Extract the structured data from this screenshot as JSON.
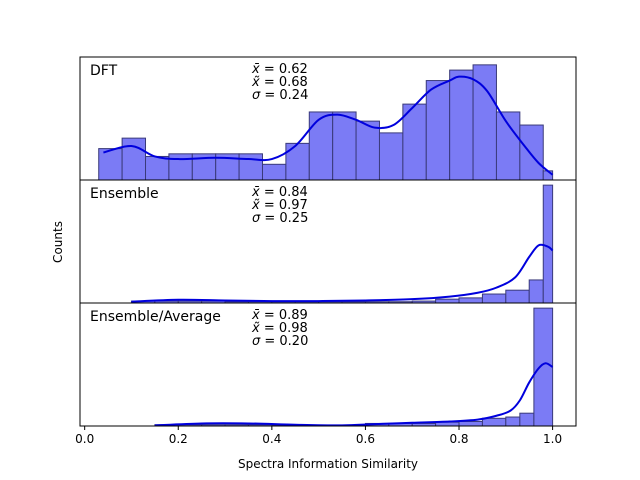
{
  "chart_data": {
    "type": "histogram",
    "xlabel": "Spectra Information Similarity",
    "ylabel": "Counts",
    "xlim": [
      -0.01,
      1.05
    ],
    "xticks": [
      0.0,
      0.2,
      0.4,
      0.6,
      0.8,
      1.0
    ],
    "xtick_labels": [
      "0.0",
      "0.2",
      "0.4",
      "0.6",
      "0.8",
      "1.0"
    ],
    "bar_color": "#7b7bf5",
    "bar_edge_color": "#3a3a7a",
    "kde_color": "#0000dd",
    "panels": [
      {
        "name": "DFT",
        "stats": {
          "mean": "0.62",
          "median": "0.68",
          "sigma": "0.24"
        },
        "ymax": 9.4,
        "bins": [
          [
            0.03,
            0.08,
            2.4
          ],
          [
            0.08,
            0.13,
            3.2
          ],
          [
            0.13,
            0.18,
            1.8
          ],
          [
            0.18,
            0.23,
            2.0
          ],
          [
            0.23,
            0.28,
            2.0
          ],
          [
            0.28,
            0.33,
            2.0
          ],
          [
            0.33,
            0.38,
            2.0
          ],
          [
            0.38,
            0.43,
            1.2
          ],
          [
            0.43,
            0.48,
            2.8
          ],
          [
            0.48,
            0.53,
            5.2
          ],
          [
            0.53,
            0.58,
            5.2
          ],
          [
            0.58,
            0.63,
            4.5
          ],
          [
            0.63,
            0.68,
            3.6
          ],
          [
            0.68,
            0.73,
            5.8
          ],
          [
            0.73,
            0.78,
            7.6
          ],
          [
            0.78,
            0.83,
            8.4
          ],
          [
            0.83,
            0.88,
            8.8
          ],
          [
            0.88,
            0.93,
            5.2
          ],
          [
            0.93,
            0.98,
            4.2
          ],
          [
            0.98,
            1.0,
            0.7
          ]
        ],
        "kde": [
          [
            0.04,
            2.1
          ],
          [
            0.1,
            2.6
          ],
          [
            0.15,
            1.8
          ],
          [
            0.2,
            1.6
          ],
          [
            0.28,
            1.7
          ],
          [
            0.35,
            1.6
          ],
          [
            0.4,
            1.6
          ],
          [
            0.45,
            2.6
          ],
          [
            0.5,
            4.6
          ],
          [
            0.54,
            5.0
          ],
          [
            0.58,
            4.6
          ],
          [
            0.62,
            4.0
          ],
          [
            0.66,
            4.2
          ],
          [
            0.7,
            5.5
          ],
          [
            0.74,
            6.9
          ],
          [
            0.78,
            7.6
          ],
          [
            0.8,
            7.9
          ],
          [
            0.83,
            7.7
          ],
          [
            0.86,
            6.8
          ],
          [
            0.9,
            4.5
          ],
          [
            0.94,
            2.6
          ],
          [
            0.97,
            1.3
          ],
          [
            1.0,
            0.4
          ]
        ]
      },
      {
        "name": "Ensemble",
        "stats": {
          "mean": "0.84",
          "median": "0.97",
          "sigma": "0.25"
        },
        "ymax": 9.6,
        "bins": [
          [
            0.1,
            0.15,
            0.15
          ],
          [
            0.15,
            0.2,
            0.15
          ],
          [
            0.2,
            0.25,
            0.15
          ],
          [
            0.25,
            0.3,
            0.15
          ],
          [
            0.3,
            0.35,
            0.1
          ],
          [
            0.35,
            0.4,
            0.1
          ],
          [
            0.4,
            0.45,
            0.1
          ],
          [
            0.45,
            0.5,
            0.1
          ],
          [
            0.5,
            0.55,
            0.1
          ],
          [
            0.55,
            0.6,
            0.1
          ],
          [
            0.6,
            0.65,
            0.1
          ],
          [
            0.65,
            0.7,
            0.1
          ],
          [
            0.7,
            0.75,
            0.15
          ],
          [
            0.75,
            0.8,
            0.3
          ],
          [
            0.8,
            0.85,
            0.4
          ],
          [
            0.85,
            0.9,
            0.7
          ],
          [
            0.9,
            0.95,
            1.0
          ],
          [
            0.95,
            0.98,
            1.8
          ],
          [
            0.98,
            1.0,
            9.2
          ]
        ],
        "kde": [
          [
            0.1,
            0.1
          ],
          [
            0.2,
            0.25
          ],
          [
            0.3,
            0.2
          ],
          [
            0.4,
            0.15
          ],
          [
            0.5,
            0.15
          ],
          [
            0.6,
            0.2
          ],
          [
            0.7,
            0.3
          ],
          [
            0.78,
            0.5
          ],
          [
            0.84,
            0.8
          ],
          [
            0.88,
            1.2
          ],
          [
            0.92,
            2.0
          ],
          [
            0.95,
            3.6
          ],
          [
            0.97,
            4.5
          ],
          [
            0.99,
            4.4
          ],
          [
            1.0,
            4.1
          ]
        ]
      },
      {
        "name": "Ensemble/Average",
        "stats": {
          "mean": "0.89",
          "median": "0.98",
          "sigma": "0.20"
        },
        "ymax": 9.6,
        "bins": [
          [
            0.15,
            0.2,
            0.1
          ],
          [
            0.2,
            0.25,
            0.1
          ],
          [
            0.25,
            0.3,
            0.1
          ],
          [
            0.3,
            0.35,
            0.1
          ],
          [
            0.35,
            0.4,
            0.1
          ],
          [
            0.4,
            0.45,
            0.05
          ],
          [
            0.45,
            0.5,
            0.05
          ],
          [
            0.5,
            0.55,
            0.05
          ],
          [
            0.55,
            0.6,
            0.05
          ],
          [
            0.6,
            0.65,
            0.2
          ],
          [
            0.65,
            0.7,
            0.2
          ],
          [
            0.7,
            0.75,
            0.2
          ],
          [
            0.75,
            0.8,
            0.3
          ],
          [
            0.8,
            0.85,
            0.35
          ],
          [
            0.85,
            0.9,
            0.6
          ],
          [
            0.9,
            0.93,
            0.7
          ],
          [
            0.93,
            0.96,
            1.0
          ],
          [
            0.96,
            1.0,
            9.2
          ]
        ],
        "kde": [
          [
            0.15,
            0.05
          ],
          [
            0.25,
            0.2
          ],
          [
            0.35,
            0.2
          ],
          [
            0.45,
            0.1
          ],
          [
            0.55,
            0.05
          ],
          [
            0.62,
            0.15
          ],
          [
            0.7,
            0.25
          ],
          [
            0.78,
            0.35
          ],
          [
            0.84,
            0.5
          ],
          [
            0.88,
            0.8
          ],
          [
            0.91,
            1.2
          ],
          [
            0.93,
            2.0
          ],
          [
            0.95,
            3.4
          ],
          [
            0.97,
            4.5
          ],
          [
            0.985,
            4.9
          ],
          [
            1.0,
            4.6
          ]
        ]
      }
    ]
  }
}
